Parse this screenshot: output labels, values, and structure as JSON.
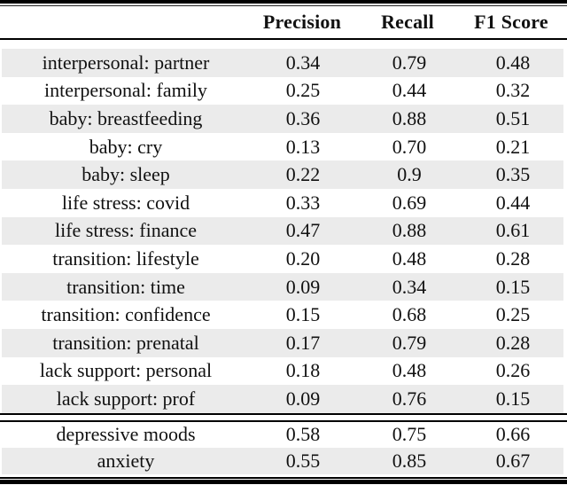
{
  "table": {
    "column_headers": [
      "Precision",
      "Recall",
      "F1 Score"
    ],
    "rows": [
      {
        "label": "interpersonal: partner",
        "precision": "0.34",
        "recall": "0.79",
        "f1": "0.48"
      },
      {
        "label": "interpersonal: family",
        "precision": "0.25",
        "recall": "0.44",
        "f1": "0.32"
      },
      {
        "label": "baby: breastfeeding",
        "precision": "0.36",
        "recall": "0.88",
        "f1": "0.51"
      },
      {
        "label": "baby: cry",
        "precision": "0.13",
        "recall": "0.70",
        "f1": "0.21"
      },
      {
        "label": "baby: sleep",
        "precision": "0.22",
        "recall": "0.9",
        "f1": "0.35"
      },
      {
        "label": "life stress: covid",
        "precision": "0.33",
        "recall": "0.69",
        "f1": "0.44"
      },
      {
        "label": "life stress: finance",
        "precision": "0.47",
        "recall": "0.88",
        "f1": "0.61"
      },
      {
        "label": "transition: lifestyle",
        "precision": "0.20",
        "recall": "0.48",
        "f1": "0.28"
      },
      {
        "label": "transition: time",
        "precision": "0.09",
        "recall": "0.34",
        "f1": "0.15"
      },
      {
        "label": "transition: confidence",
        "precision": "0.15",
        "recall": "0.68",
        "f1": "0.25"
      },
      {
        "label": "transition: prenatal",
        "precision": "0.17",
        "recall": "0.79",
        "f1": "0.28"
      },
      {
        "label": "lack support: personal",
        "precision": "0.18",
        "recall": "0.48",
        "f1": "0.26"
      },
      {
        "label": "lack support: prof",
        "precision": "0.09",
        "recall": "0.76",
        "f1": "0.15"
      }
    ],
    "summary_rows": [
      {
        "label": "depressive moods",
        "precision": "0.58",
        "recall": "0.75",
        "f1": "0.66"
      },
      {
        "label": "anxiety",
        "precision": "0.55",
        "recall": "0.85",
        "f1": "0.67"
      }
    ]
  },
  "colors": {
    "stripe_background": "#ebebeb",
    "rule_color": "#000000",
    "text_color": "#111111"
  }
}
